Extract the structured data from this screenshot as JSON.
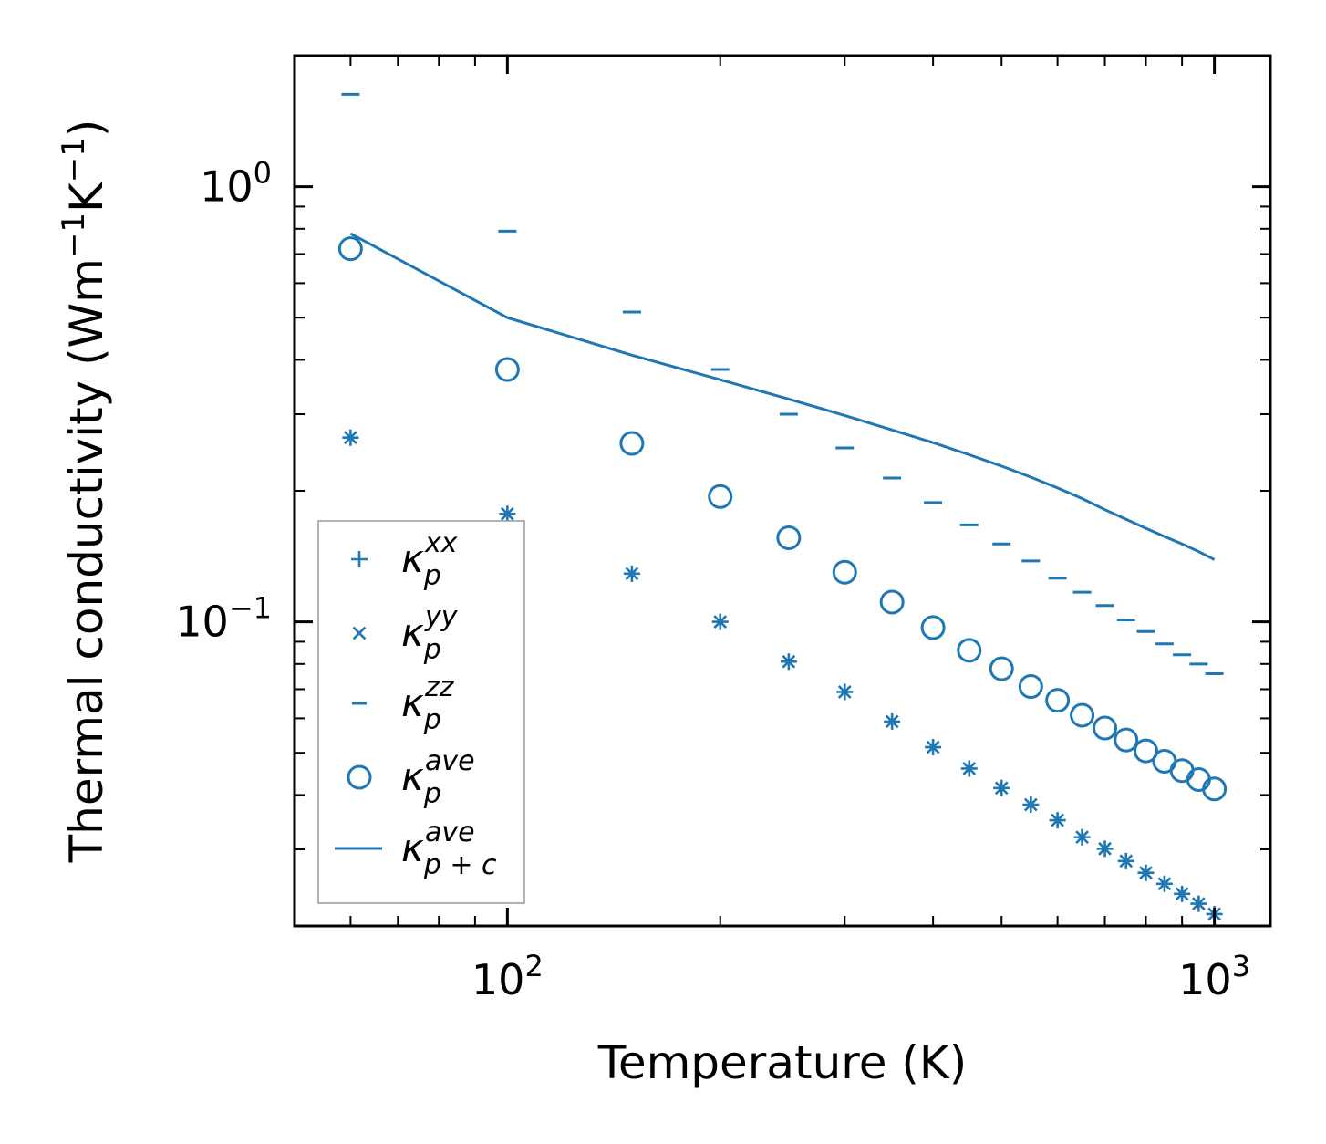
{
  "chart_data": {
    "type": "scatter",
    "title": "",
    "xlabel": "Temperature (K)",
    "ylabel": "Thermal conductivity (Wm",
    "ylabel_parts": [
      "Thermal conductivity (Wm",
      "−1",
      "K",
      "−1",
      ")"
    ],
    "xscale": "log",
    "yscale": "log",
    "xlim": [
      50,
      1200
    ],
    "ylim": [
      0.02,
      2.0
    ],
    "x_ticks": [
      {
        "value": 100,
        "base": "10",
        "exp": "2"
      },
      {
        "value": 1000,
        "base": "10",
        "exp": "3"
      }
    ],
    "y_ticks": [
      {
        "value": 1.0,
        "base": "10",
        "exp": "0"
      },
      {
        "value": 0.1,
        "base": "10",
        "exp": "−1"
      }
    ],
    "legend_position": "lower-left",
    "color": "#1f77b4",
    "x": [
      60,
      100,
      150,
      200,
      250,
      300,
      350,
      400,
      450,
      500,
      550,
      600,
      650,
      700,
      750,
      800,
      850,
      900,
      950,
      1000
    ],
    "series": [
      {
        "name": "κp^xx",
        "label_main": "κ",
        "label_sub": "p",
        "label_sup": "xx",
        "marker": "plus",
        "values": [
          0.265,
          0.177,
          0.129,
          0.1,
          0.081,
          0.069,
          0.059,
          0.0515,
          0.046,
          0.0415,
          0.038,
          0.035,
          0.032,
          0.0301,
          0.0282,
          0.0265,
          0.025,
          0.0237,
          0.0225,
          0.0213
        ]
      },
      {
        "name": "κp^yy",
        "label_main": "κ",
        "label_sub": "p",
        "label_sup": "yy",
        "marker": "x",
        "values": [
          0.265,
          0.177,
          0.129,
          0.1,
          0.081,
          0.069,
          0.059,
          0.0515,
          0.046,
          0.0415,
          0.038,
          0.035,
          0.032,
          0.0301,
          0.0282,
          0.0265,
          0.025,
          0.0237,
          0.0225,
          0.0213
        ]
      },
      {
        "name": "κp^zz",
        "label_main": "κ",
        "label_sub": "p",
        "label_sup": "zz",
        "marker": "hline",
        "values": [
          1.63,
          0.79,
          0.515,
          0.38,
          0.3,
          0.251,
          0.214,
          0.188,
          0.167,
          0.151,
          0.138,
          0.126,
          0.117,
          0.109,
          0.101,
          0.095,
          0.089,
          0.084,
          0.08,
          0.076
        ]
      },
      {
        "name": "κp^ave",
        "label_main": "κ",
        "label_sub": "p",
        "label_sup": "ave",
        "marker": "circle",
        "values": [
          0.72,
          0.38,
          0.257,
          0.194,
          0.156,
          0.13,
          0.111,
          0.097,
          0.086,
          0.078,
          0.071,
          0.066,
          0.061,
          0.057,
          0.0535,
          0.0505,
          0.0478,
          0.0455,
          0.0434,
          0.0413
        ]
      },
      {
        "name": "κp+c^ave",
        "label_main": "κ",
        "label_sub": "p + c",
        "label_sup": "ave",
        "marker": "line",
        "values": [
          0.78,
          0.5,
          0.41,
          0.36,
          0.325,
          0.298,
          0.276,
          0.258,
          0.242,
          0.228,
          0.215,
          0.203,
          0.192,
          0.181,
          0.172,
          0.164,
          0.157,
          0.151,
          0.145,
          0.139
        ]
      }
    ]
  }
}
